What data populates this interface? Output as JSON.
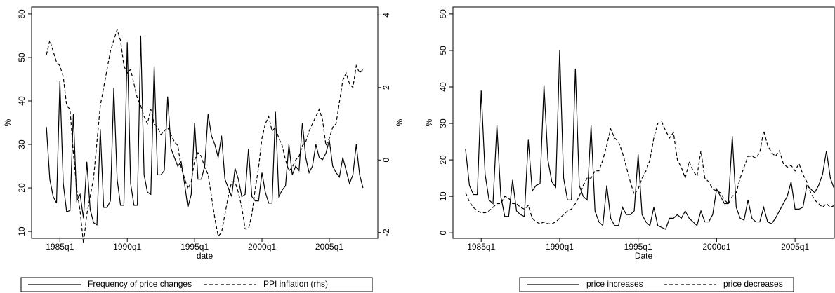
{
  "chart_data": [
    {
      "type": "line",
      "xlabel": "date",
      "ylabel": "%",
      "y2label": "%",
      "xlim": [
        1982.9,
        2008.6
      ],
      "xticks": [
        {
          "value": 1985,
          "label": "1985q1"
        },
        {
          "value": 1990,
          "label": "1990q1"
        },
        {
          "value": 1995,
          "label": "1995q1"
        },
        {
          "value": 2000,
          "label": "2000q1"
        },
        {
          "value": 2005,
          "label": "2005q1"
        }
      ],
      "ylim": [
        8.4,
        61.6
      ],
      "yticks": [
        10,
        20,
        30,
        40,
        50,
        60
      ],
      "y2lim": [
        -2.16,
        4.22
      ],
      "y2ticks": [
        -2,
        0,
        2,
        4
      ],
      "x": [
        1984,
        1984.25,
        1984.5,
        1984.75,
        1985,
        1985.25,
        1985.5,
        1985.75,
        1986,
        1986.25,
        1986.5,
        1986.75,
        1987,
        1987.25,
        1987.5,
        1987.75,
        1988,
        1988.25,
        1988.5,
        1988.75,
        1989,
        1989.25,
        1989.5,
        1989.75,
        1990,
        1990.25,
        1990.5,
        1990.75,
        1991,
        1991.25,
        1991.5,
        1991.75,
        1992,
        1992.25,
        1992.5,
        1992.75,
        1993,
        1993.25,
        1993.5,
        1993.75,
        1994,
        1994.25,
        1994.5,
        1994.75,
        1995,
        1995.25,
        1995.5,
        1995.75,
        1996,
        1996.25,
        1996.5,
        1996.75,
        1997,
        1997.25,
        1997.5,
        1997.75,
        1998,
        1998.25,
        1998.5,
        1998.75,
        1999,
        1999.25,
        1999.5,
        1999.75,
        2000,
        2000.25,
        2000.5,
        2000.75,
        2001,
        2001.25,
        2001.5,
        2001.75,
        2002,
        2002.25,
        2002.5,
        2002.75,
        2003,
        2003.25,
        2003.5,
        2003.75,
        2004,
        2004.25,
        2004.5,
        2004.75,
        2005,
        2005.25,
        2005.5,
        2005.75,
        2006,
        2006.25,
        2006.5,
        2006.75,
        2007,
        2007.25,
        2007.5
      ],
      "series": [
        {
          "name": "Frequency of price changes",
          "color": "#000000",
          "linestyle": "solid",
          "values": [
            34,
            22,
            18,
            16.5,
            44.5,
            21,
            14.5,
            14.8,
            37,
            17,
            18.5,
            13,
            26,
            15,
            12,
            11.5,
            33.5,
            15.5,
            15.5,
            17,
            43,
            22,
            16,
            16,
            53.5,
            21,
            16,
            16,
            55,
            23,
            19,
            18.5,
            48,
            23,
            23,
            24,
            41,
            29,
            27,
            25,
            26,
            21,
            15.5,
            18.5,
            35,
            22,
            22,
            25,
            37,
            32,
            30,
            27,
            32,
            22,
            20,
            18,
            24.5,
            22,
            18,
            18.5,
            29,
            18,
            17,
            17,
            23.5,
            19,
            16.5,
            16.5,
            37.5,
            18,
            19.5,
            20.5,
            30,
            23,
            25,
            24,
            35,
            27,
            23.5,
            25,
            30,
            27,
            26.5,
            28,
            31,
            25,
            23.5,
            22.5,
            27,
            24,
            21,
            23,
            30,
            23,
            20
          ]
        },
        {
          "name": "PPI inflation (rhs)",
          "color": "#000000",
          "linestyle": "dashed",
          "axis": "y2",
          "values": [
            2.9,
            3.3,
            3.0,
            2.7,
            2.6,
            2.3,
            1.5,
            1.4,
            0.2,
            -0.8,
            -1.4,
            -2.3,
            -1.5,
            -1.0,
            -0.5,
            0.5,
            1.5,
            2.0,
            2.5,
            3.0,
            3.3,
            3.6,
            3.3,
            2.6,
            2.4,
            2.5,
            2.1,
            1.7,
            1.5,
            1.2,
            1.0,
            1.4,
            1.0,
            0.9,
            0.7,
            0.8,
            0.9,
            0.7,
            0.5,
            0.4,
            -0.2,
            -0.5,
            -0.8,
            -0.6,
            0.0,
            0.2,
            0.1,
            -0.2,
            -0.4,
            -1.0,
            -1.6,
            -2.1,
            -2.0,
            -1.5,
            -1.0,
            -0.6,
            -0.6,
            -0.9,
            -1.3,
            -1.9,
            -1.9,
            -1.5,
            -0.8,
            -0.2,
            0.6,
            1.0,
            1.2,
            0.8,
            0.9,
            0.6,
            0.4,
            0.0,
            -0.3,
            -0.2,
            0.0,
            0.1,
            0.4,
            0.5,
            0.8,
            1.0,
            1.2,
            1.4,
            1.1,
            0.4,
            0.6,
            0.9,
            1.0,
            1.6,
            2.2,
            2.4,
            2.1,
            2.0,
            2.6,
            2.4,
            2.5
          ]
        }
      ]
    },
    {
      "type": "line",
      "xlabel": "Date",
      "ylabel": "%",
      "xlim": [
        1983.2,
        2007.5
      ],
      "xticks": [
        {
          "value": 1985,
          "label": "1985q1"
        },
        {
          "value": 1990,
          "label": "1990q1"
        },
        {
          "value": 1995,
          "label": "1995q1"
        },
        {
          "value": 2000,
          "label": "2000q1"
        },
        {
          "value": 2005,
          "label": "2005q1"
        }
      ],
      "ylim": [
        -1.5,
        61.9
      ],
      "yticks": [
        0,
        10,
        20,
        30,
        40,
        50,
        60
      ],
      "x": [
        1984,
        1984.25,
        1984.5,
        1984.75,
        1985,
        1985.25,
        1985.5,
        1985.75,
        1986,
        1986.25,
        1986.5,
        1986.75,
        1987,
        1987.25,
        1987.5,
        1987.75,
        1988,
        1988.25,
        1988.5,
        1988.75,
        1989,
        1989.25,
        1989.5,
        1989.75,
        1990,
        1990.25,
        1990.5,
        1990.75,
        1991,
        1991.25,
        1991.5,
        1991.75,
        1992,
        1992.25,
        1992.5,
        1992.75,
        1993,
        1993.25,
        1993.5,
        1993.75,
        1994,
        1994.25,
        1994.5,
        1994.75,
        1995,
        1995.25,
        1995.5,
        1995.75,
        1996,
        1996.25,
        1996.5,
        1996.75,
        1997,
        1997.25,
        1997.5,
        1997.75,
        1998,
        1998.25,
        1998.5,
        1998.75,
        1999,
        1999.25,
        1999.5,
        1999.75,
        2000,
        2000.25,
        2000.5,
        2000.75,
        2001,
        2001.25,
        2001.5,
        2001.75,
        2002,
        2002.25,
        2002.5,
        2002.75,
        2003,
        2003.25,
        2003.5,
        2003.75,
        2004,
        2004.25,
        2004.5,
        2004.75,
        2005,
        2005.25,
        2005.5,
        2005.75,
        2006,
        2006.25,
        2006.5,
        2006.75,
        2007,
        2007.25,
        2007.5
      ],
      "series": [
        {
          "name": "price increases",
          "color": "#000000",
          "linestyle": "solid",
          "values": [
            23,
            13,
            10.5,
            10.5,
            39,
            16,
            9,
            8,
            29.5,
            10,
            4.5,
            4.5,
            14.5,
            6,
            5,
            4.5,
            25.5,
            11.5,
            13,
            13.5,
            40.5,
            20,
            14,
            12.5,
            50,
            15,
            9,
            9,
            45,
            13,
            10,
            9,
            29.5,
            6,
            3,
            2,
            13,
            4,
            2,
            2,
            7,
            5,
            5,
            6,
            21.5,
            5,
            3,
            2,
            7,
            2,
            1.5,
            1,
            4,
            4,
            5,
            4,
            6,
            4,
            3,
            2,
            6,
            3,
            3,
            5,
            12,
            10,
            8,
            8,
            26.5,
            7,
            4,
            3.5,
            9,
            4,
            3,
            3,
            7,
            3,
            2.5,
            4,
            6,
            8,
            10,
            14,
            6.5,
            6.5,
            7,
            13,
            12,
            11,
            13,
            16,
            22.5,
            15,
            12
          ]
        },
        {
          "name": "price decreases",
          "color": "#000000",
          "linestyle": "dashed",
          "values": [
            11,
            8.5,
            7,
            6,
            5.5,
            5.5,
            6,
            7,
            8,
            8,
            10,
            9.5,
            8,
            8,
            7,
            6.5,
            7.5,
            4,
            3,
            2.5,
            3,
            2.5,
            2.5,
            3,
            4,
            5,
            6,
            6.5,
            8,
            10,
            13,
            15,
            15,
            17,
            17,
            20,
            24,
            28.5,
            26,
            25,
            22,
            18,
            14,
            10.5,
            12,
            15,
            17,
            20,
            26,
            30,
            30.5,
            28,
            26,
            27.5,
            20,
            18,
            15,
            19.5,
            17,
            15.5,
            22.5,
            15,
            14,
            12,
            11.5,
            11,
            9,
            8,
            10,
            11,
            15,
            18,
            21,
            21,
            20.5,
            22,
            28,
            24,
            22,
            21,
            22.5,
            19,
            18,
            18.5,
            17,
            19,
            16,
            14,
            11,
            9,
            8,
            7,
            8,
            7,
            7.5
          ]
        }
      ]
    }
  ]
}
